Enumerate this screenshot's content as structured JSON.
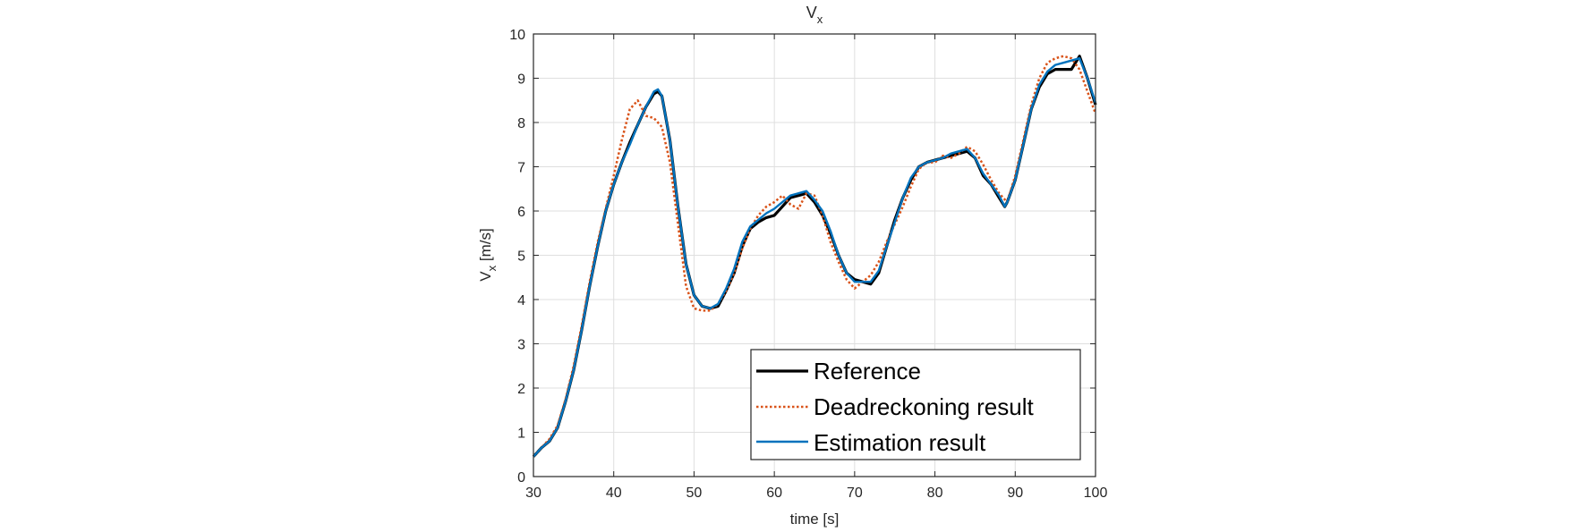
{
  "chart_data": {
    "type": "line",
    "title": "V",
    "title_sub": "x",
    "xlabel": "time [s]",
    "ylabel": "V",
    "ylabel_sub": "x",
    "ylabel_unit": " [m/s]",
    "xlim": [
      30,
      100
    ],
    "ylim": [
      0,
      10
    ],
    "xticks": [
      30,
      40,
      50,
      60,
      70,
      80,
      90,
      100
    ],
    "yticks": [
      0,
      1,
      2,
      3,
      4,
      5,
      6,
      7,
      8,
      9,
      10
    ],
    "grid": true,
    "legend_position": "bottom-right",
    "colors": {
      "Reference": "#000000",
      "Deadreckoning result": "#d95319",
      "Estimation result": "#0072bd"
    },
    "series": [
      {
        "name": "Reference",
        "style": "solid",
        "x": [
          30,
          31,
          32,
          33,
          34,
          35,
          36,
          37,
          38,
          39,
          40,
          41,
          42,
          43,
          44,
          45,
          45.5,
          46,
          47,
          48,
          49,
          50,
          51,
          52,
          53,
          54,
          55,
          56,
          57,
          58,
          59,
          60,
          61,
          62,
          63,
          64,
          65,
          66,
          67,
          68,
          69,
          70,
          71,
          72,
          73,
          74,
          75,
          76,
          77,
          78,
          79,
          80,
          81,
          82,
          83,
          84,
          85,
          86,
          87,
          88,
          88.7,
          89,
          90,
          91,
          92,
          93,
          94,
          95,
          96,
          97,
          98,
          99,
          100
        ],
        "values": [
          0.45,
          0.65,
          0.8,
          1.1,
          1.7,
          2.4,
          3.3,
          4.3,
          5.2,
          6.0,
          6.6,
          7.1,
          7.55,
          7.95,
          8.35,
          8.65,
          8.7,
          8.6,
          7.6,
          6.1,
          4.8,
          4.1,
          3.85,
          3.8,
          3.85,
          4.2,
          4.6,
          5.2,
          5.6,
          5.75,
          5.85,
          5.9,
          6.1,
          6.3,
          6.35,
          6.4,
          6.2,
          5.9,
          5.5,
          5.0,
          4.6,
          4.45,
          4.4,
          4.35,
          4.6,
          5.2,
          5.8,
          6.3,
          6.7,
          7.0,
          7.1,
          7.15,
          7.2,
          7.25,
          7.3,
          7.35,
          7.2,
          6.8,
          6.6,
          6.3,
          6.1,
          6.2,
          6.7,
          7.5,
          8.3,
          8.8,
          9.1,
          9.2,
          9.2,
          9.2,
          9.5,
          9.0,
          8.4
        ]
      },
      {
        "name": "Deadreckoning result",
        "style": "dotted",
        "x": [
          30,
          31,
          32,
          33,
          34,
          35,
          36,
          37,
          38,
          39,
          40,
          41,
          42,
          43,
          44,
          45,
          46,
          47,
          48,
          49,
          50,
          51,
          52,
          53,
          54,
          55,
          56,
          57,
          58,
          59,
          60,
          61,
          62,
          63,
          64,
          65,
          66,
          67,
          68,
          69,
          70,
          71,
          72,
          73,
          74,
          75,
          76,
          77,
          78,
          79,
          80,
          81,
          82,
          83,
          84,
          85,
          86,
          87,
          88,
          89,
          90,
          91,
          92,
          93,
          94,
          95,
          96,
          97,
          98,
          99,
          100
        ],
        "values": [
          0.45,
          0.65,
          0.85,
          1.15,
          1.75,
          2.5,
          3.4,
          4.4,
          5.3,
          6.05,
          6.8,
          7.6,
          8.3,
          8.5,
          8.15,
          8.1,
          7.9,
          7.1,
          5.7,
          4.3,
          3.8,
          3.75,
          3.75,
          3.9,
          4.2,
          4.6,
          5.15,
          5.6,
          5.9,
          6.1,
          6.2,
          6.35,
          6.15,
          6.05,
          6.4,
          6.35,
          5.9,
          5.3,
          4.85,
          4.45,
          4.25,
          4.4,
          4.55,
          4.85,
          5.3,
          5.7,
          6.1,
          6.55,
          6.95,
          7.1,
          7.1,
          7.25,
          7.2,
          7.3,
          7.45,
          7.35,
          7.05,
          6.7,
          6.4,
          6.2,
          6.8,
          7.6,
          8.4,
          9.0,
          9.35,
          9.45,
          9.5,
          9.45,
          9.2,
          8.7,
          8.2
        ]
      },
      {
        "name": "Estimation result",
        "style": "solid",
        "x": [
          30,
          31,
          32,
          33,
          34,
          35,
          36,
          37,
          38,
          39,
          40,
          41,
          42,
          43,
          44,
          45,
          45.5,
          46,
          47,
          48,
          49,
          50,
          51,
          52,
          53,
          54,
          55,
          56,
          57,
          58,
          59,
          60,
          61,
          62,
          63,
          64,
          65,
          66,
          67,
          68,
          69,
          70,
          71,
          72,
          73,
          74,
          75,
          76,
          77,
          78,
          79,
          80,
          81,
          82,
          83,
          84,
          85,
          86,
          87,
          88,
          88.7,
          89,
          90,
          91,
          92,
          93,
          94,
          95,
          96,
          97,
          98,
          99,
          100
        ],
        "values": [
          0.45,
          0.65,
          0.8,
          1.1,
          1.7,
          2.4,
          3.3,
          4.3,
          5.2,
          6.0,
          6.6,
          7.1,
          7.5,
          7.95,
          8.35,
          8.7,
          8.75,
          8.6,
          7.6,
          6.1,
          4.8,
          4.1,
          3.85,
          3.8,
          3.9,
          4.25,
          4.7,
          5.3,
          5.65,
          5.8,
          5.95,
          6.05,
          6.2,
          6.35,
          6.4,
          6.45,
          6.25,
          6.0,
          5.55,
          5.0,
          4.6,
          4.4,
          4.4,
          4.4,
          4.65,
          5.2,
          5.75,
          6.3,
          6.75,
          7.0,
          7.1,
          7.15,
          7.2,
          7.3,
          7.35,
          7.4,
          7.2,
          6.85,
          6.6,
          6.35,
          6.1,
          6.2,
          6.7,
          7.5,
          8.3,
          8.85,
          9.15,
          9.3,
          9.35,
          9.4,
          9.45,
          9.0,
          8.45
        ]
      }
    ]
  }
}
